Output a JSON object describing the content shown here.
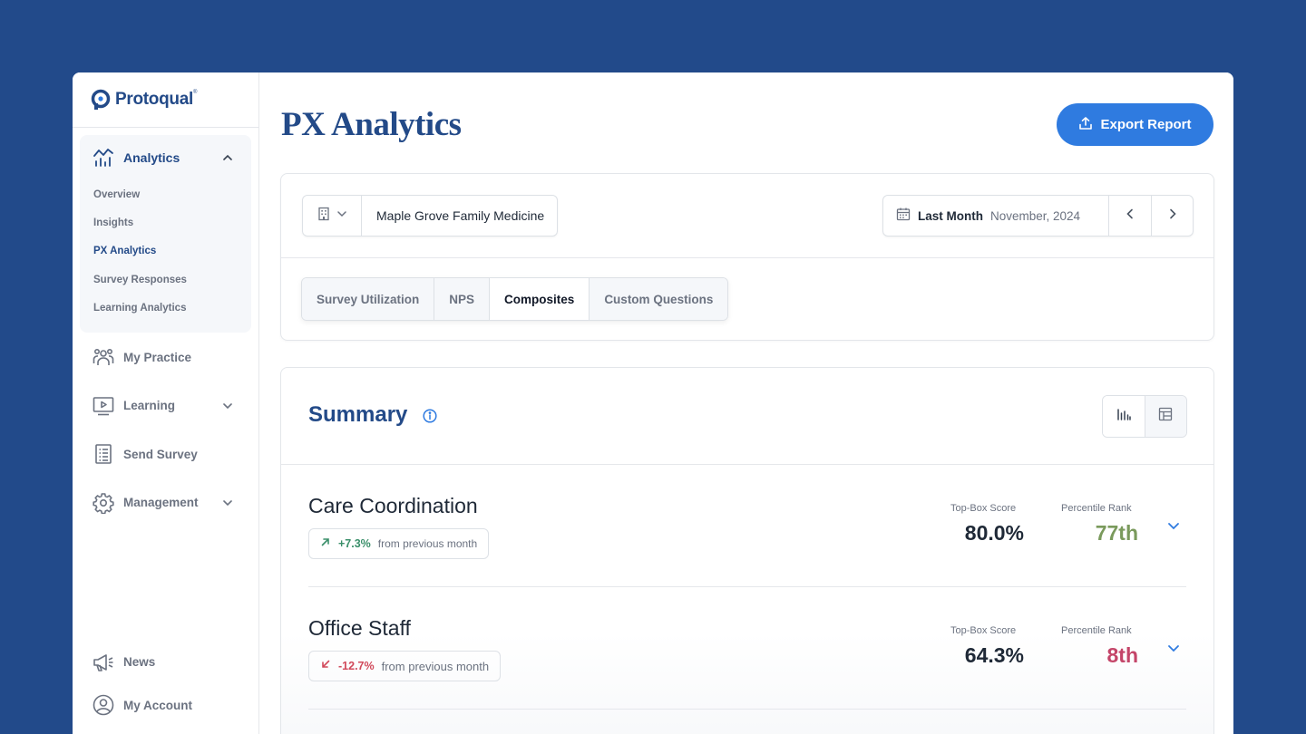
{
  "brand": {
    "name": "Protoqual",
    "trademark": "®"
  },
  "sidebar": {
    "analytics": {
      "label": "Analytics",
      "items": [
        {
          "label": "Overview"
        },
        {
          "label": "Insights"
        },
        {
          "label": "PX Analytics"
        },
        {
          "label": "Survey Responses"
        },
        {
          "label": "Learning Analytics"
        }
      ],
      "active_item": "PX Analytics"
    },
    "items": [
      {
        "label": "My Practice",
        "icon": "people-icon"
      },
      {
        "label": "Learning",
        "icon": "video-icon"
      },
      {
        "label": "Send Survey",
        "icon": "clipboard-icon"
      },
      {
        "label": "Management",
        "icon": "gear-icon"
      }
    ],
    "bottom": [
      {
        "label": "News",
        "icon": "megaphone-icon"
      },
      {
        "label": "My Account",
        "icon": "user-circle-icon"
      }
    ]
  },
  "header": {
    "title": "PX Analytics",
    "export_label": "Export Report"
  },
  "filters": {
    "location": "Maple Grove Family Medicine",
    "period_label": "Last Month",
    "period_value": "November, 2024"
  },
  "tabs": [
    {
      "label": "Survey Utilization"
    },
    {
      "label": "NPS"
    },
    {
      "label": "Composites",
      "active": true
    },
    {
      "label": "Custom Questions"
    }
  ],
  "summary": {
    "title": "Summary",
    "rows": [
      {
        "name": "Care Coordination",
        "change": "+7.3%",
        "change_suffix": "from previous month",
        "direction": "up",
        "top_box_label": "Top-Box Score",
        "top_box_value": "80.0%",
        "percentile_label": "Percentile Rank",
        "percentile_value": "77th",
        "percentile_color": "#7a9a5c"
      },
      {
        "name": "Office Staff",
        "change": "-12.7%",
        "change_suffix": "from previous month",
        "direction": "down",
        "top_box_label": "Top-Box Score",
        "top_box_value": "64.3%",
        "percentile_label": "Percentile Rank",
        "percentile_value": "8th",
        "percentile_color": "#c44569"
      }
    ]
  },
  "colors": {
    "background": "#224a8a",
    "brand": "#234a88",
    "accent": "#2f7be0",
    "positive": "#3a8f6a",
    "negative": "#d1495b"
  }
}
